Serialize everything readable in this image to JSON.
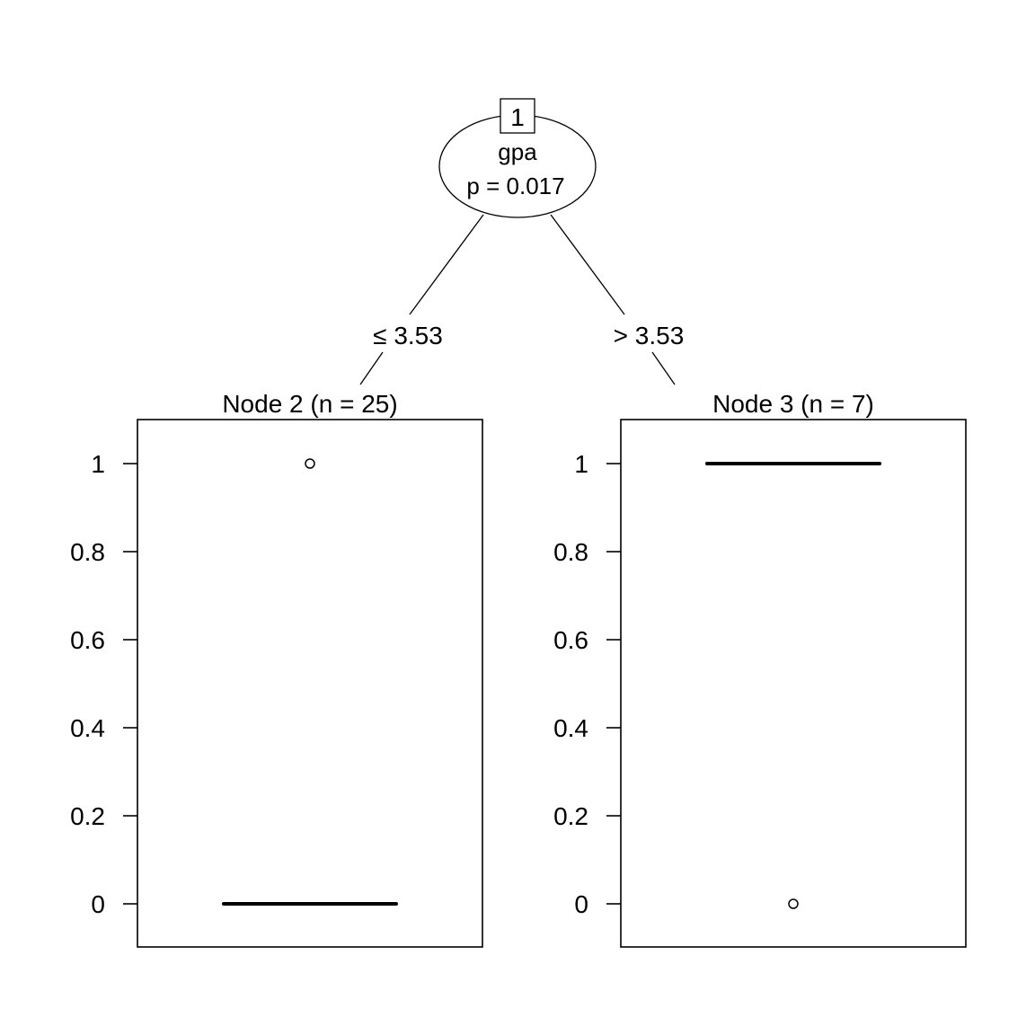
{
  "chart_data": {
    "type": "tree",
    "root": {
      "id": "1",
      "variable": "gpa",
      "p_label": "p = 0.017",
      "p_value": 0.017
    },
    "splits": [
      {
        "label": "≤ 3.53",
        "threshold": 3.53,
        "direction": "left"
      },
      {
        "label": "> 3.53",
        "threshold": 3.53,
        "direction": "right"
      }
    ],
    "terminal_nodes": [
      {
        "title": "Node 2 (n = 25)",
        "n": 25,
        "plot_type": "boxplot",
        "median": 0,
        "q1": 0,
        "q3": 0,
        "whisker_low": 0,
        "whisker_high": 0,
        "outliers": [
          1
        ]
      },
      {
        "title": "Node 3 (n = 7)",
        "n": 7,
        "plot_type": "boxplot",
        "median": 1,
        "q1": 1,
        "q3": 1,
        "whisker_low": 1,
        "whisker_high": 1,
        "outliers": [
          0
        ]
      }
    ],
    "y_ticks": [
      {
        "value": 0,
        "label": "0"
      },
      {
        "value": 0.2,
        "label": "0.2"
      },
      {
        "value": 0.4,
        "label": "0.4"
      },
      {
        "value": 0.6,
        "label": "0.6"
      },
      {
        "value": 0.8,
        "label": "0.8"
      },
      {
        "value": 1,
        "label": "1"
      }
    ],
    "ylim": [
      -0.1,
      1.1
    ],
    "colors": {
      "ink": "#000000",
      "background": "#ffffff"
    }
  }
}
